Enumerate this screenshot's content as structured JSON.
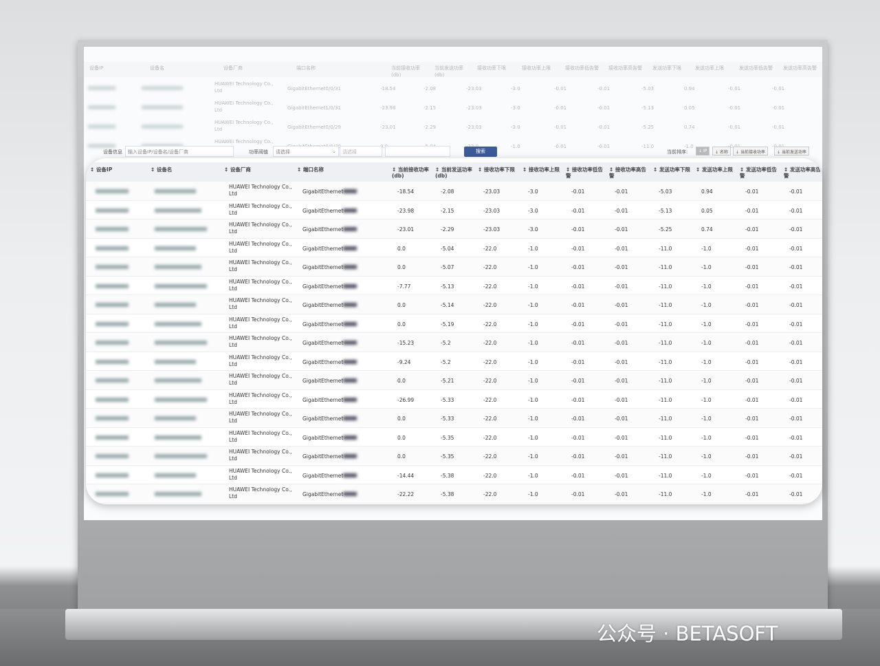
{
  "filter": {
    "device_label": "设备信息",
    "device_placeholder": "输入设备IP/设备名/设备厂商",
    "threshold_label": "功率阈值",
    "threshold_value": "请选择",
    "second_select": "请选择",
    "search_button": "搜索",
    "sort_label": "当前排序:",
    "sort_options": [
      "IP",
      "名称",
      "当前接收功率",
      "当前发送功率"
    ]
  },
  "columns": [
    "设备IP",
    "设备名",
    "设备厂商",
    "端口名称",
    "当前接收功率(db)",
    "当前发送功率(db)",
    "接收功率下限",
    "接收功率上限",
    "接收功率低告警",
    "接收功率高告警",
    "发送功率下限",
    "发送功率上限",
    "发送功率低告警",
    "发送功率高告警"
  ],
  "vendor": "HUAWEI Technology Co., Ltd",
  "port_prefix": "GigabitEthernet",
  "background_ports": [
    "GigabitEthernet0/0/31",
    "GigabitEthernet1/0/31",
    "GigabitEthernet0/0/29",
    "GigabitEthernet0/0/30"
  ],
  "rows": [
    [
      "-18.54",
      "-2.08",
      "-23.03",
      "-3.0",
      "-0.01",
      "-0.01",
      "-5.03",
      "0.94",
      "-0.01",
      "-0.01"
    ],
    [
      "-23.98",
      "-2.15",
      "-23.03",
      "-3.0",
      "-0.01",
      "-0.01",
      "-5.13",
      "0.05",
      "-0.01",
      "-0.01"
    ],
    [
      "-23.01",
      "-2.29",
      "-23.03",
      "-3.0",
      "-0.01",
      "-0.01",
      "-5.25",
      "0.74",
      "-0.01",
      "-0.01"
    ],
    [
      "0.0",
      "-5.04",
      "-22.0",
      "-1.0",
      "-0.01",
      "-0.01",
      "-11.0",
      "-1.0",
      "-0.01",
      "-0.01"
    ],
    [
      "0.0",
      "-5.07",
      "-22.0",
      "-1.0",
      "-0.01",
      "-0.01",
      "-11.0",
      "-1.0",
      "-0.01",
      "-0.01"
    ],
    [
      "-7.77",
      "-5.13",
      "-22.0",
      "-1.0",
      "-0.01",
      "-0.01",
      "-11.0",
      "-1.0",
      "-0.01",
      "-0.01"
    ],
    [
      "0.0",
      "-5.14",
      "-22.0",
      "-1.0",
      "-0.01",
      "-0.01",
      "-11.0",
      "-1.0",
      "-0.01",
      "-0.01"
    ],
    [
      "0.0",
      "-5.19",
      "-22.0",
      "-1.0",
      "-0.01",
      "-0.01",
      "-11.0",
      "-1.0",
      "-0.01",
      "-0.01"
    ],
    [
      "-15.23",
      "-5.2",
      "-22.0",
      "-1.0",
      "-0.01",
      "-0.01",
      "-11.0",
      "-1.0",
      "-0.01",
      "-0.01"
    ],
    [
      "-9.24",
      "-5.2",
      "-22.0",
      "-1.0",
      "-0.01",
      "-0.01",
      "-11.0",
      "-1.0",
      "-0.01",
      "-0.01"
    ],
    [
      "0.0",
      "-5.21",
      "-22.0",
      "-1.0",
      "-0.01",
      "-0.01",
      "-11.0",
      "-1.0",
      "-0.01",
      "-0.01"
    ],
    [
      "-26.99",
      "-5.33",
      "-22.0",
      "-1.0",
      "-0.01",
      "-0.01",
      "-11.0",
      "-1.0",
      "-0.01",
      "-0.01"
    ],
    [
      "0.0",
      "-5.33",
      "-22.0",
      "-1.0",
      "-0.01",
      "-0.01",
      "-11.0",
      "-1.0",
      "-0.01",
      "-0.01"
    ],
    [
      "0.0",
      "-5.35",
      "-22.0",
      "-1.0",
      "-0.01",
      "-0.01",
      "-11.0",
      "-1.0",
      "-0.01",
      "-0.01"
    ],
    [
      "0.0",
      "-5.35",
      "-22.0",
      "-1.0",
      "-0.01",
      "-0.01",
      "-11.0",
      "-1.0",
      "-0.01",
      "-0.01"
    ],
    [
      "-14.44",
      "-5.38",
      "-22.0",
      "-1.0",
      "-0.01",
      "-0.01",
      "-11.0",
      "-1.0",
      "-0.01",
      "-0.01"
    ],
    [
      "-22.22",
      "-5.38",
      "-22.0",
      "-1.0",
      "-0.01",
      "-0.01",
      "-11.0",
      "-1.0",
      "-0.01",
      "-0.01"
    ]
  ],
  "watermark": "公众号 · BETASOFT"
}
